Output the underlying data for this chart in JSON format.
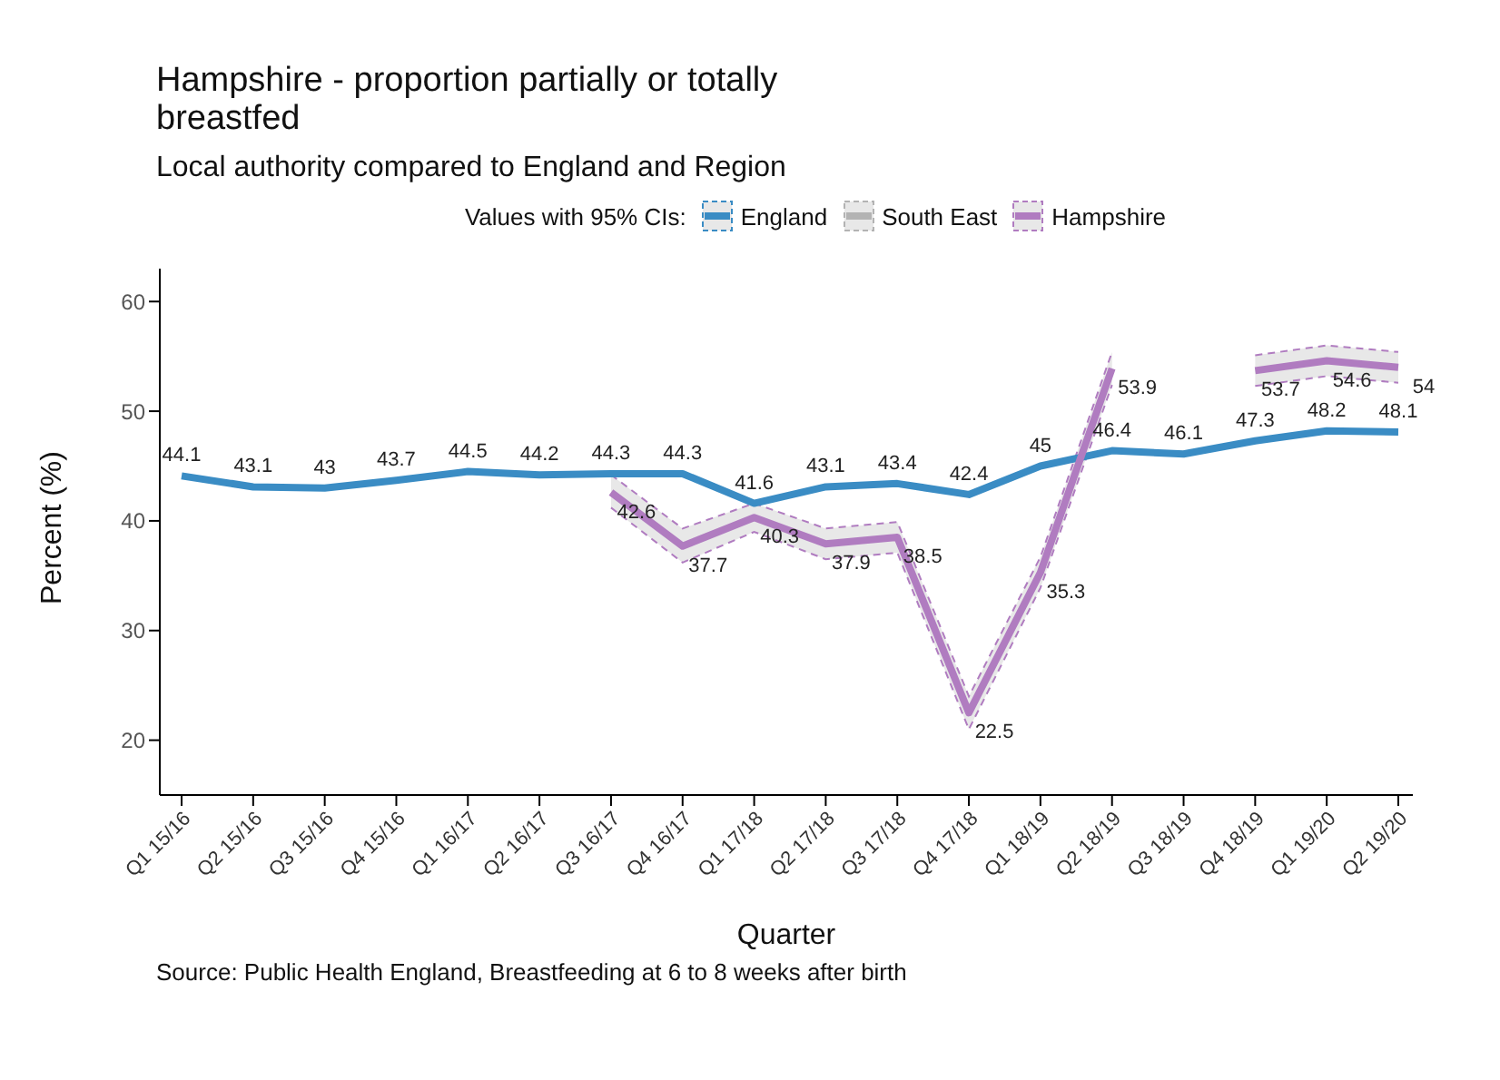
{
  "chart_data": {
    "type": "line",
    "title": "Hampshire - proportion partially or totally breastfed",
    "subtitle": "Local authority compared to England and Region",
    "xlabel": "Quarter",
    "ylabel": "Percent (%)",
    "legend_title": "Values with 95% CIs:",
    "legend": "top",
    "marker": "none",
    "line_style": "solid",
    "data_labels": true,
    "annotations": [
      "Source: Public Health England, Breastfeeding at 6 to 8 weeks after birth"
    ],
    "categories": [
      "Q1 15/16",
      "Q2 15/16",
      "Q3 15/16",
      "Q4 15/16",
      "Q1 16/17",
      "Q2 16/17",
      "Q3 16/17",
      "Q4 16/17",
      "Q1 17/18",
      "Q2 17/18",
      "Q3 17/18",
      "Q4 17/18",
      "Q1 18/19",
      "Q2 18/19",
      "Q3 18/19",
      "Q4 18/19",
      "Q1 19/20",
      "Q2 19/20"
    ],
    "ylim": [
      15,
      63
    ],
    "yticks": [
      20,
      30,
      40,
      50,
      60
    ],
    "series": [
      {
        "name": "England",
        "color": "#3a8cc4",
        "values": [
          44.1,
          43.1,
          43,
          43.7,
          44.5,
          44.2,
          44.3,
          44.3,
          41.6,
          43.1,
          43.4,
          42.4,
          45,
          46.4,
          46.1,
          47.3,
          48.2,
          48.1
        ]
      },
      {
        "name": "South East",
        "color": "#b3b3b3",
        "values": [
          null,
          null,
          null,
          null,
          null,
          null,
          null,
          null,
          null,
          null,
          null,
          null,
          null,
          null,
          null,
          null,
          null,
          null
        ]
      },
      {
        "name": "Hampshire",
        "color": "#b07cc0",
        "values": [
          null,
          null,
          null,
          null,
          null,
          null,
          42.6,
          37.7,
          40.3,
          37.9,
          38.5,
          22.5,
          35.3,
          53.9,
          null,
          53.7,
          54.6,
          54
        ],
        "lower": [
          null,
          null,
          null,
          null,
          null,
          null,
          41.2,
          36.2,
          39,
          36.5,
          37.1,
          21,
          33.9,
          52.4,
          null,
          52.3,
          53.2,
          52.6
        ],
        "upper": [
          null,
          null,
          null,
          null,
          null,
          null,
          44.2,
          39.3,
          41.6,
          39.3,
          39.9,
          24,
          36.7,
          55.4,
          null,
          55.1,
          56,
          55.4
        ]
      }
    ]
  }
}
